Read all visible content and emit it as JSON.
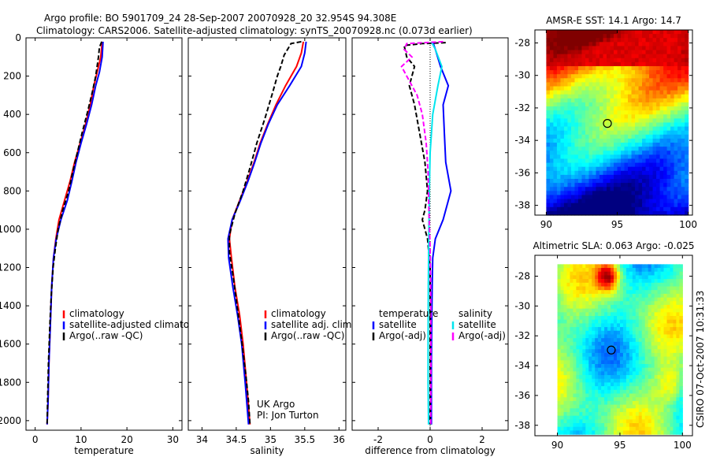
{
  "header": {
    "line1": "Argo profile: BO 5901709_24 28-Sep-2007 20070928_20 32.954S 94.308E",
    "line2": "Climatology: CARS2006. Satellite-adjusted climatology: synTS_20070928.nc (0.073d earlier)"
  },
  "side_label": "CSIRO 07-Oct-2007 10:31:33",
  "credit": {
    "line1": "UK Argo",
    "line2": "PI: Jon Turton"
  },
  "colors": {
    "climatology": "#ff0000",
    "satellite": "#0000ff",
    "argo": "#000000",
    "sat_sal": "#00e5ee",
    "argo_sal": "#ff00ff"
  },
  "chart_data": [
    {
      "id": "temperature",
      "type": "line",
      "xlabel": "temperature",
      "ylabel": "",
      "xlim": [
        -2,
        32
      ],
      "ylim": [
        2050,
        0
      ],
      "xticks": [
        0,
        10,
        20,
        30
      ],
      "yticks": [
        0,
        200,
        400,
        600,
        800,
        1000,
        1200,
        1400,
        1600,
        1800,
        2000
      ],
      "legend": [
        "climatology",
        "satellite-adjusted climatology",
        "Argo(..raw -QC)"
      ],
      "series": [
        {
          "name": "climatology",
          "color": "#ff0000",
          "dash": "",
          "points": [
            [
              14.6,
              20
            ],
            [
              14.3,
              100
            ],
            [
              13.5,
              180
            ],
            [
              12.8,
              250
            ],
            [
              12.0,
              350
            ],
            [
              11.0,
              450
            ],
            [
              9.8,
              550
            ],
            [
              8.6,
              650
            ],
            [
              7.6,
              750
            ],
            [
              6.4,
              850
            ],
            [
              5.2,
              950
            ],
            [
              4.5,
              1050
            ],
            [
              4.0,
              1150
            ],
            [
              3.6,
              1300
            ],
            [
              3.3,
              1500
            ],
            [
              3.0,
              1700
            ],
            [
              2.8,
              1900
            ],
            [
              2.6,
              2020
            ]
          ]
        },
        {
          "name": "satellite-adjusted climatology",
          "color": "#0000ff",
          "dash": "",
          "points": [
            [
              14.8,
              20
            ],
            [
              14.6,
              100
            ],
            [
              14.0,
              180
            ],
            [
              13.2,
              250
            ],
            [
              12.3,
              350
            ],
            [
              11.2,
              450
            ],
            [
              10.0,
              550
            ],
            [
              8.9,
              650
            ],
            [
              8.0,
              750
            ],
            [
              7.0,
              850
            ],
            [
              5.6,
              950
            ],
            [
              4.6,
              1050
            ],
            [
              4.0,
              1150
            ],
            [
              3.6,
              1300
            ],
            [
              3.3,
              1500
            ],
            [
              3.0,
              1700
            ],
            [
              2.8,
              1900
            ],
            [
              2.6,
              2020
            ]
          ]
        },
        {
          "name": "Argo(..raw -QC)",
          "color": "#000000",
          "dash": "6,3",
          "points": [
            [
              14.5,
              20
            ],
            [
              14.0,
              50
            ],
            [
              13.8,
              100
            ],
            [
              13.2,
              200
            ],
            [
              12.5,
              280
            ],
            [
              11.5,
              380
            ],
            [
              10.2,
              500
            ],
            [
              9.2,
              600
            ],
            [
              8.2,
              700
            ],
            [
              7.3,
              800
            ],
            [
              6.0,
              900
            ],
            [
              5.0,
              1000
            ],
            [
              4.4,
              1100
            ],
            [
              3.9,
              1200
            ],
            [
              3.5,
              1350
            ],
            [
              3.2,
              1500
            ],
            [
              2.9,
              1700
            ],
            [
              2.7,
              1900
            ],
            [
              2.6,
              2020
            ]
          ]
        }
      ]
    },
    {
      "id": "salinity",
      "type": "line",
      "xlabel": "salinity",
      "ylabel": "",
      "xlim": [
        33.8,
        36.1
      ],
      "ylim": [
        2050,
        0
      ],
      "xticks": [
        34,
        34.5,
        35,
        35.5,
        36
      ],
      "xticklabels": [
        "34",
        "34.5",
        "35",
        "35.5",
        "36"
      ],
      "yticks": [
        0,
        200,
        400,
        600,
        800,
        1000,
        1200,
        1400,
        1600,
        1800,
        2000
      ],
      "legend": [
        "climatology",
        "satellite adj. clim.",
        "Argo(..raw -QC)"
      ],
      "series": [
        {
          "name": "climatology",
          "color": "#ff0000",
          "dash": "",
          "points": [
            [
              35.48,
              20
            ],
            [
              35.45,
              80
            ],
            [
              35.38,
              150
            ],
            [
              35.22,
              250
            ],
            [
              35.08,
              350
            ],
            [
              34.96,
              450
            ],
            [
              34.85,
              550
            ],
            [
              34.76,
              650
            ],
            [
              34.66,
              750
            ],
            [
              34.55,
              850
            ],
            [
              34.44,
              950
            ],
            [
              34.4,
              1050
            ],
            [
              34.43,
              1150
            ],
            [
              34.48,
              1300
            ],
            [
              34.55,
              1450
            ],
            [
              34.6,
              1600
            ],
            [
              34.65,
              1800
            ],
            [
              34.7,
              2020
            ]
          ]
        },
        {
          "name": "satellite adj. clim.",
          "color": "#0000ff",
          "dash": "",
          "points": [
            [
              35.52,
              20
            ],
            [
              35.5,
              80
            ],
            [
              35.45,
              150
            ],
            [
              35.28,
              250
            ],
            [
              35.1,
              350
            ],
            [
              34.97,
              450
            ],
            [
              34.86,
              550
            ],
            [
              34.77,
              650
            ],
            [
              34.67,
              750
            ],
            [
              34.56,
              850
            ],
            [
              34.44,
              950
            ],
            [
              34.38,
              1050
            ],
            [
              34.39,
              1150
            ],
            [
              34.45,
              1300
            ],
            [
              34.52,
              1450
            ],
            [
              34.58,
              1600
            ],
            [
              34.63,
              1800
            ],
            [
              34.68,
              2020
            ]
          ]
        },
        {
          "name": "Argo(..raw -QC)",
          "color": "#000000",
          "dash": "6,3",
          "points": [
            [
              35.45,
              20
            ],
            [
              35.3,
              30
            ],
            [
              35.25,
              60
            ],
            [
              35.2,
              90
            ],
            [
              35.15,
              150
            ],
            [
              35.1,
              200
            ],
            [
              35.02,
              300
            ],
            [
              34.92,
              420
            ],
            [
              34.8,
              550
            ],
            [
              34.7,
              680
            ],
            [
              34.6,
              800
            ],
            [
              34.48,
              920
            ],
            [
              34.4,
              1030
            ],
            [
              34.4,
              1120
            ],
            [
              34.46,
              1260
            ],
            [
              34.52,
              1420
            ],
            [
              34.58,
              1580
            ],
            [
              34.64,
              1760
            ],
            [
              34.68,
              1900
            ],
            [
              34.7,
              2020
            ]
          ]
        }
      ]
    },
    {
      "id": "difference",
      "type": "line",
      "xlabel": "difference from climatology",
      "ylabel": "",
      "xlim": [
        -3,
        3
      ],
      "ylim": [
        2050,
        0
      ],
      "xticks": [
        -2,
        0,
        2
      ],
      "yticks": [
        0,
        200,
        400,
        600,
        800,
        1000,
        1200,
        1400,
        1600,
        1800,
        2000
      ],
      "legend": [
        "temperature",
        "satellite",
        "Argo(-adj)",
        "salinity",
        "satellite",
        "Argo(-adj)"
      ],
      "series": [
        {
          "name": "temperature satellite",
          "color": "#0000ff",
          "dash": "",
          "points": [
            [
              0.1,
              20
            ],
            [
              0.2,
              60
            ],
            [
              0.4,
              150
            ],
            [
              0.7,
              250
            ],
            [
              0.5,
              350
            ],
            [
              0.55,
              500
            ],
            [
              0.6,
              650
            ],
            [
              0.8,
              800
            ],
            [
              0.5,
              950
            ],
            [
              0.2,
              1050
            ],
            [
              0.1,
              1150
            ],
            [
              0.08,
              1300
            ],
            [
              0.06,
              1500
            ],
            [
              0.05,
              1700
            ],
            [
              0.05,
              1900
            ],
            [
              0.05,
              2020
            ]
          ]
        },
        {
          "name": "temperature Argo(-adj)",
          "color": "#000000",
          "dash": "6,3",
          "points": [
            [
              0.6,
              25
            ],
            [
              -0.3,
              30
            ],
            [
              -1.0,
              40
            ],
            [
              -0.9,
              100
            ],
            [
              -0.6,
              150
            ],
            [
              -0.8,
              250
            ],
            [
              -0.6,
              350
            ],
            [
              -0.4,
              500
            ],
            [
              -0.2,
              650
            ],
            [
              -0.1,
              800
            ],
            [
              -0.2,
              900
            ],
            [
              -0.3,
              950
            ],
            [
              -0.1,
              1050
            ],
            [
              0,
              1200
            ],
            [
              0,
              1500
            ],
            [
              0,
              1800
            ],
            [
              0,
              2020
            ]
          ]
        },
        {
          "name": "salinity satellite",
          "color": "#00e5ee",
          "dash": "",
          "points": [
            [
              0.05,
              20
            ],
            [
              0.2,
              60
            ],
            [
              0.45,
              150
            ],
            [
              0.3,
              250
            ],
            [
              0.1,
              400
            ],
            [
              0,
              600
            ],
            [
              -0.03,
              800
            ],
            [
              -0.05,
              1000
            ],
            [
              -0.07,
              1300
            ],
            [
              -0.08,
              1600
            ],
            [
              -0.08,
              1800
            ],
            [
              -0.06,
              2020
            ]
          ]
        },
        {
          "name": "salinity Argo(-adj)",
          "color": "#ff00ff",
          "dash": "6,3",
          "points": [
            [
              0.5,
              20
            ],
            [
              -0.9,
              30
            ],
            [
              -1.0,
              60
            ],
            [
              -0.7,
              100
            ],
            [
              -1.1,
              150
            ],
            [
              -0.9,
              200
            ],
            [
              -0.5,
              300
            ],
            [
              -0.3,
              400
            ],
            [
              -0.15,
              550
            ],
            [
              -0.08,
              700
            ],
            [
              -0.05,
              900
            ],
            [
              0,
              1100
            ],
            [
              0.03,
              1400
            ],
            [
              0.03,
              1700
            ],
            [
              0.02,
              2020
            ]
          ]
        }
      ]
    },
    {
      "id": "sst_map",
      "type": "heatmap",
      "title": "AMSR-E SST: 14.1 Argo: 14.7",
      "xlim": [
        89.2,
        100.3
      ],
      "ylim": [
        -38.6,
        -27.2
      ],
      "xticks": [
        90,
        95,
        100
      ],
      "yticks": [
        -28,
        -30,
        -32,
        -34,
        -36,
        -38
      ],
      "argo_position": [
        94.308,
        -32.954
      ]
    },
    {
      "id": "sla_map",
      "type": "heatmap",
      "title": "Altimetric SLA: 0.063 Argo: -0.025",
      "xlim": [
        88.2,
        100.8
      ],
      "ylim": [
        -38.7,
        -26.6
      ],
      "xticks": [
        90,
        95,
        100
      ],
      "yticks": [
        -28,
        -30,
        -32,
        -34,
        -36,
        -38
      ],
      "argo_position": [
        94.308,
        -32.954
      ]
    }
  ]
}
